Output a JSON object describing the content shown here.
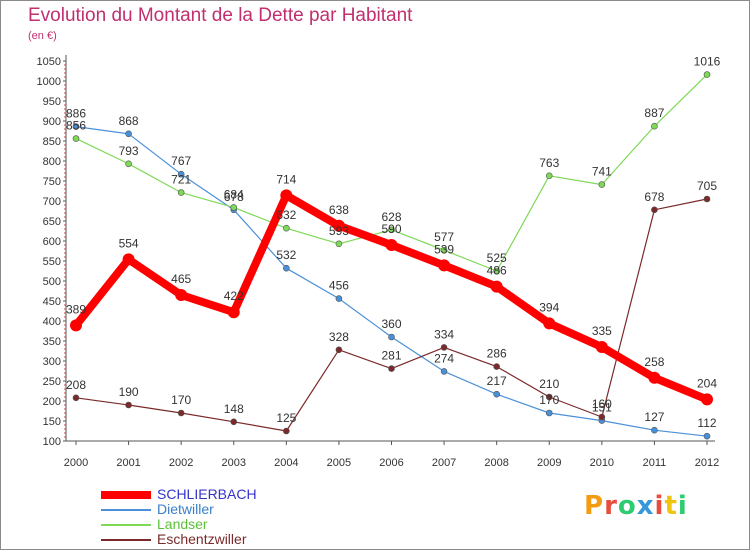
{
  "header": {
    "title": "Evolution du Montant de la Dette par Habitant",
    "unit": "(en €)"
  },
  "logo": {
    "letters": [
      "P",
      "r",
      "o",
      "x",
      "i",
      "t",
      "i"
    ],
    "colors": [
      "#f39c12",
      "#e74c3c",
      "#2ecc71",
      "#3498db",
      "#e74c3c",
      "#f1c40f",
      "#2ecc71"
    ]
  },
  "chart_data": {
    "type": "line",
    "title": "Evolution du Montant de la Dette par Habitant",
    "ylabel": "(en €)",
    "xlabel": "",
    "x": [
      "2000",
      "2001",
      "2002",
      "2003",
      "2004",
      "2005",
      "2006",
      "2007",
      "2008",
      "2009",
      "2010",
      "2011",
      "2012"
    ],
    "ylim": [
      100,
      1050
    ],
    "yticks": [
      100,
      150,
      200,
      250,
      300,
      350,
      400,
      450,
      500,
      550,
      600,
      650,
      700,
      750,
      800,
      850,
      900,
      950,
      1000,
      1050
    ],
    "grid": false,
    "legend_position": "bottom-left",
    "series": [
      {
        "name": "SCHLIERBACH",
        "color": "#ff0000",
        "text_color": "#3333cc",
        "values": [
          389,
          554,
          465,
          422,
          714,
          638,
          590,
          539,
          486,
          394,
          335,
          258,
          204
        ]
      },
      {
        "name": "Dietwiller",
        "color": "#4a90d9",
        "text_color": "#3a7fc8",
        "values": [
          886,
          868,
          767,
          678,
          532,
          456,
          360,
          274,
          217,
          170,
          151,
          127,
          112
        ]
      },
      {
        "name": "Landser",
        "color": "#7ed957",
        "text_color": "#5cbf3a",
        "values": [
          856,
          793,
          721,
          684,
          632,
          593,
          628,
          577,
          525,
          763,
          741,
          887,
          1016
        ]
      },
      {
        "name": "Eschentzwiller",
        "color": "#7a2a2a",
        "text_color": "#7a2a2a",
        "values": [
          208,
          190,
          170,
          148,
          125,
          328,
          281,
          334,
          286,
          210,
          160,
          678,
          705
        ]
      }
    ]
  }
}
